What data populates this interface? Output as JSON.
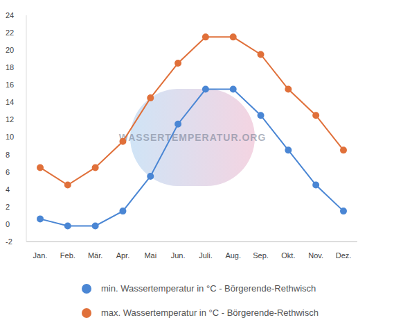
{
  "chart_data": {
    "type": "line",
    "categories": [
      "Jan.",
      "Feb.",
      "Mär.",
      "Apr.",
      "Mai",
      "Jun.",
      "Juli.",
      "Aug.",
      "Sep.",
      "Okt.",
      "Nov.",
      "Dez."
    ],
    "series": [
      {
        "name": "min. Wassertemperatur in °C - Börgerende-Rethwisch",
        "color": "#4a86d4",
        "marker": "circle",
        "values": [
          0.6,
          -0.2,
          -0.2,
          1.5,
          5.5,
          11.5,
          15.5,
          15.5,
          12.5,
          8.5,
          4.5,
          1.5
        ]
      },
      {
        "name": "max. Wassertemperatur in °C - Börgerende-Rethwisch",
        "color": "#e0703a",
        "marker": "circle",
        "values": [
          6.5,
          4.5,
          6.5,
          9.5,
          14.5,
          18.5,
          21.5,
          21.5,
          19.5,
          15.5,
          12.5,
          8.5
        ]
      }
    ],
    "ylim": [
      -2,
      24
    ],
    "yticks": [
      -2,
      0,
      2,
      4,
      6,
      8,
      10,
      12,
      14,
      16,
      18,
      20,
      22,
      24
    ],
    "grid": false,
    "legend": "bottom",
    "annotations": [
      "WASSERTEMPERATUR.ORG"
    ]
  }
}
